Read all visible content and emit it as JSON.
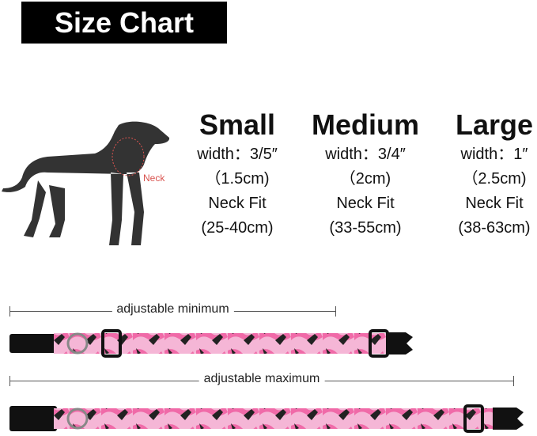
{
  "title": "Size Chart",
  "neck_label": "Neck",
  "sizes": [
    {
      "name": "Small",
      "width": "width：3/5″",
      "width_cm": "（1.5cm)",
      "fit_label": "Neck Fit",
      "fit": "(25-40cm)"
    },
    {
      "name": "Medium",
      "width": "width：3/4″",
      "width_cm": "（2cm)",
      "fit_label": "Neck Fit",
      "fit": "(33-55cm)"
    },
    {
      "name": "Large",
      "width": "width：1″",
      "width_cm": "（2.5cm)",
      "fit_label": "Neck Fit",
      "fit": "(38-63cm)"
    }
  ],
  "adjust": {
    "min": "adjustable minimum",
    "max": "adjustable maximum"
  },
  "colors": {
    "collar_pink": "#f06aa8",
    "collar_light": "#f5b6d6",
    "buckle": "#111111",
    "neck": "#d9534f"
  }
}
